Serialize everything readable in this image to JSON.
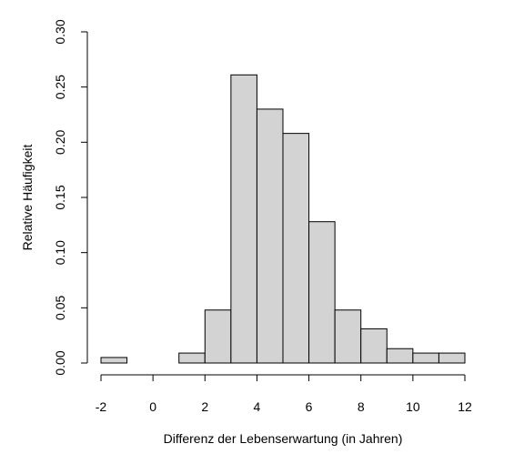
{
  "chart_data": {
    "type": "bar",
    "title": "",
    "xlabel": "Differenz der Lebenserwartung (in Jahren)",
    "ylabel": "Relative Häufigkeit",
    "xlim": [
      -2,
      12
    ],
    "ylim": [
      0,
      0.3
    ],
    "x_ticks": [
      -2,
      0,
      2,
      4,
      6,
      8,
      10,
      12
    ],
    "x_tick_labels": [
      "-2",
      "0",
      "2",
      "4",
      "6",
      "8",
      "10",
      "12"
    ],
    "y_ticks": [
      0.0,
      0.05,
      0.1,
      0.15,
      0.2,
      0.25,
      0.3
    ],
    "y_tick_labels": [
      "0.00",
      "0.05",
      "0.10",
      "0.15",
      "0.20",
      "0.25",
      "0.30"
    ],
    "bins": [
      {
        "x0": -2,
        "x1": -1,
        "value": 0.005
      },
      {
        "x0": -1,
        "x1": 0,
        "value": 0.0
      },
      {
        "x0": 0,
        "x1": 1,
        "value": 0.0
      },
      {
        "x0": 1,
        "x1": 2,
        "value": 0.009
      },
      {
        "x0": 2,
        "x1": 3,
        "value": 0.048
      },
      {
        "x0": 3,
        "x1": 4,
        "value": 0.261
      },
      {
        "x0": 4,
        "x1": 5,
        "value": 0.23
      },
      {
        "x0": 5,
        "x1": 6,
        "value": 0.208
      },
      {
        "x0": 6,
        "x1": 7,
        "value": 0.128
      },
      {
        "x0": 7,
        "x1": 8,
        "value": 0.048
      },
      {
        "x0": 8,
        "x1": 9,
        "value": 0.031
      },
      {
        "x0": 9,
        "x1": 10,
        "value": 0.013
      },
      {
        "x0": 10,
        "x1": 11,
        "value": 0.009
      },
      {
        "x0": 11,
        "x1": 12,
        "value": 0.009
      }
    ],
    "bar_fill": "#d3d3d3",
    "bar_stroke": "#000000",
    "grid": false,
    "legend": "none"
  }
}
